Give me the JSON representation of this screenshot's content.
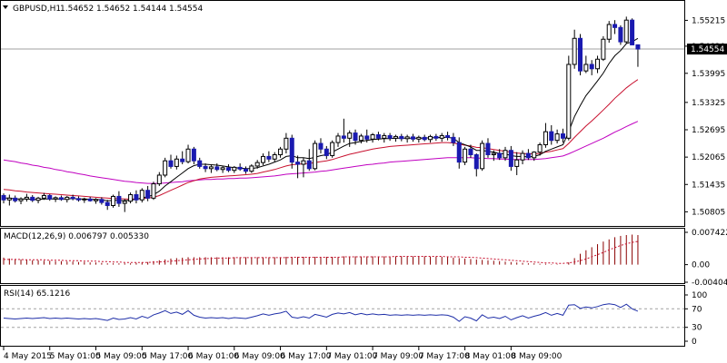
{
  "main_panel": {
    "symbol_header": "GBPUSD,H1",
    "ohlc": [
      "1.54652",
      "1.54652",
      "1.54144",
      "1.54554"
    ],
    "current_price_label": "1.54554",
    "y_ticks": [
      "1.55215",
      "1.54620",
      "1.53995",
      "1.53325",
      "1.52695",
      "1.52065",
      "1.51435",
      "1.50805"
    ]
  },
  "macd_panel": {
    "header": "MACD(12,26,9) 0.006797 0.005330",
    "y_ticks": [
      "0.007422",
      "0.00",
      "-0.004041"
    ]
  },
  "rsi_panel": {
    "header": "RSI(14) 65.1216",
    "y_ticks": [
      "100",
      "70",
      "30",
      "0"
    ]
  },
  "time_axis": [
    "4 May 2015",
    "5 May 01:00",
    "5 May 09:00",
    "5 May 17:00",
    "6 May 01:00",
    "6 May 09:00",
    "6 May 17:00",
    "7 May 01:00",
    "7 May 09:00",
    "7 May 17:00",
    "8 May 01:00",
    "8 May 09:00"
  ],
  "colors": {
    "bull_candle": "#000000",
    "bear_candle": "#1a1ab0",
    "ma_fast": "#000000",
    "ma_mid": "#c8102e",
    "ma_slow": "#c000c0",
    "macd_hist": "#8b0000",
    "macd_signal": "#c8102e",
    "rsi_line": "#1f2fa8",
    "grid": "#808080"
  },
  "chart_data": {
    "type": "candlestick",
    "instrument": "GBPUSD",
    "timeframe": "H1",
    "ylim": [
      1.505,
      1.556
    ],
    "candles": [
      [
        1.5118,
        1.5123,
        1.51,
        1.5108
      ],
      [
        1.5108,
        1.512,
        1.5095,
        1.5112
      ],
      [
        1.5112,
        1.5118,
        1.5102,
        1.5106
      ],
      [
        1.5106,
        1.5114,
        1.5098,
        1.511
      ],
      [
        1.511,
        1.5122,
        1.5104,
        1.5114
      ],
      [
        1.5114,
        1.5119,
        1.5103,
        1.5107
      ],
      [
        1.5107,
        1.5115,
        1.51,
        1.5112
      ],
      [
        1.5112,
        1.5124,
        1.5108,
        1.5118
      ],
      [
        1.5118,
        1.5121,
        1.5106,
        1.511
      ],
      [
        1.511,
        1.5116,
        1.5103,
        1.5113
      ],
      [
        1.5113,
        1.5118,
        1.5106,
        1.5109
      ],
      [
        1.5109,
        1.5117,
        1.5102,
        1.5114
      ],
      [
        1.5114,
        1.512,
        1.5107,
        1.5111
      ],
      [
        1.5111,
        1.5116,
        1.5104,
        1.5108
      ],
      [
        1.5108,
        1.5113,
        1.5101,
        1.511
      ],
      [
        1.511,
        1.5115,
        1.5104,
        1.5106
      ],
      [
        1.5106,
        1.5112,
        1.5099,
        1.5109
      ],
      [
        1.5109,
        1.5114,
        1.5097,
        1.5102
      ],
      [
        1.5102,
        1.5108,
        1.5085,
        1.5095
      ],
      [
        1.5095,
        1.512,
        1.509,
        1.5116
      ],
      [
        1.5116,
        1.5128,
        1.5092,
        1.51
      ],
      [
        1.51,
        1.511,
        1.508,
        1.5105
      ],
      [
        1.5105,
        1.5125,
        1.51,
        1.512
      ],
      [
        1.512,
        1.513,
        1.51,
        1.5108
      ],
      [
        1.5108,
        1.5135,
        1.5102,
        1.513
      ],
      [
        1.513,
        1.514,
        1.5105,
        1.5112
      ],
      [
        1.5112,
        1.515,
        1.5108,
        1.5145
      ],
      [
        1.5145,
        1.5172,
        1.514,
        1.5165
      ],
      [
        1.5165,
        1.5205,
        1.516,
        1.5198
      ],
      [
        1.5198,
        1.5212,
        1.518,
        1.5185
      ],
      [
        1.5185,
        1.521,
        1.5178,
        1.5202
      ],
      [
        1.5202,
        1.522,
        1.519,
        1.5196
      ],
      [
        1.5196,
        1.5235,
        1.5192,
        1.5225
      ],
      [
        1.5225,
        1.523,
        1.519,
        1.5198
      ],
      [
        1.5198,
        1.5205,
        1.518,
        1.5185
      ],
      [
        1.5185,
        1.5192,
        1.5172,
        1.518
      ],
      [
        1.518,
        1.5188,
        1.517,
        1.5184
      ],
      [
        1.5184,
        1.5192,
        1.5174,
        1.5178
      ],
      [
        1.5178,
        1.5186,
        1.517,
        1.5182
      ],
      [
        1.5182,
        1.519,
        1.5172,
        1.5176
      ],
      [
        1.5176,
        1.5186,
        1.517,
        1.5183
      ],
      [
        1.5183,
        1.5192,
        1.5175,
        1.5179
      ],
      [
        1.5179,
        1.5185,
        1.5168,
        1.5174
      ],
      [
        1.5174,
        1.519,
        1.517,
        1.5186
      ],
      [
        1.5186,
        1.52,
        1.518,
        1.5194
      ],
      [
        1.5194,
        1.5215,
        1.5188,
        1.5208
      ],
      [
        1.5208,
        1.522,
        1.5195,
        1.5202
      ],
      [
        1.5202,
        1.5218,
        1.5196,
        1.5212
      ],
      [
        1.5212,
        1.523,
        1.5205,
        1.5225
      ],
      [
        1.5225,
        1.5262,
        1.5215,
        1.525
      ],
      [
        1.525,
        1.5258,
        1.518,
        1.5195
      ],
      [
        1.5195,
        1.521,
        1.5158,
        1.519
      ],
      [
        1.519,
        1.5205,
        1.516,
        1.5198
      ],
      [
        1.5198,
        1.5225,
        1.5175,
        1.518
      ],
      [
        1.518,
        1.5245,
        1.5176,
        1.5238
      ],
      [
        1.5238,
        1.525,
        1.5215,
        1.5225
      ],
      [
        1.5225,
        1.5232,
        1.5202,
        1.521
      ],
      [
        1.521,
        1.5245,
        1.5205,
        1.524
      ],
      [
        1.524,
        1.5262,
        1.523,
        1.5255
      ],
      [
        1.5255,
        1.5295,
        1.524,
        1.525
      ],
      [
        1.525,
        1.5268,
        1.523,
        1.5262
      ],
      [
        1.5262,
        1.527,
        1.5235,
        1.5245
      ],
      [
        1.5245,
        1.526,
        1.5238,
        1.5255
      ],
      [
        1.5255,
        1.527,
        1.524,
        1.5248
      ],
      [
        1.5248,
        1.5262,
        1.524,
        1.5258
      ],
      [
        1.5258,
        1.5265,
        1.5245,
        1.525
      ],
      [
        1.525,
        1.5262,
        1.524,
        1.5256
      ],
      [
        1.5256,
        1.5262,
        1.5244,
        1.525
      ],
      [
        1.525,
        1.5258,
        1.5242,
        1.5254
      ],
      [
        1.5254,
        1.526,
        1.5243,
        1.5249
      ],
      [
        1.5249,
        1.5258,
        1.524,
        1.5253
      ],
      [
        1.5253,
        1.526,
        1.5242,
        1.5248
      ],
      [
        1.5248,
        1.5256,
        1.524,
        1.5252
      ],
      [
        1.5252,
        1.5258,
        1.5243,
        1.5247
      ],
      [
        1.5247,
        1.5258,
        1.524,
        1.5254
      ],
      [
        1.5254,
        1.526,
        1.5244,
        1.525
      ],
      [
        1.525,
        1.5262,
        1.5242,
        1.5256
      ],
      [
        1.5256,
        1.5265,
        1.5245,
        1.5252
      ],
      [
        1.5252,
        1.5262,
        1.5232,
        1.524
      ],
      [
        1.524,
        1.5252,
        1.518,
        1.5195
      ],
      [
        1.5195,
        1.523,
        1.5188,
        1.5225
      ],
      [
        1.5225,
        1.5235,
        1.5205,
        1.5212
      ],
      [
        1.5212,
        1.5215,
        1.5162,
        1.518
      ],
      [
        1.518,
        1.5245,
        1.5175,
        1.5238
      ],
      [
        1.5238,
        1.525,
        1.5205,
        1.5212
      ],
      [
        1.5212,
        1.5222,
        1.5198,
        1.5215
      ],
      [
        1.5215,
        1.5225,
        1.52,
        1.5205
      ],
      [
        1.5205,
        1.523,
        1.5198,
        1.5222
      ],
      [
        1.5222,
        1.5232,
        1.5175,
        1.5185
      ],
      [
        1.5185,
        1.5218,
        1.5165,
        1.52
      ],
      [
        1.52,
        1.5222,
        1.519,
        1.5215
      ],
      [
        1.5215,
        1.5225,
        1.52,
        1.5205
      ],
      [
        1.5205,
        1.522,
        1.5198,
        1.5218
      ],
      [
        1.5218,
        1.524,
        1.521,
        1.5235
      ],
      [
        1.5235,
        1.5285,
        1.5228,
        1.5265
      ],
      [
        1.5265,
        1.528,
        1.5235,
        1.5245
      ],
      [
        1.5245,
        1.527,
        1.5238,
        1.526
      ],
      [
        1.526,
        1.5272,
        1.524,
        1.525
      ],
      [
        1.525,
        1.544,
        1.5245,
        1.542
      ],
      [
        1.542,
        1.55,
        1.541,
        1.548
      ],
      [
        1.548,
        1.549,
        1.5395,
        1.5405
      ],
      [
        1.5405,
        1.544,
        1.54,
        1.542
      ],
      [
        1.542,
        1.543,
        1.5395,
        1.541
      ],
      [
        1.541,
        1.544,
        1.54,
        1.5432
      ],
      [
        1.5432,
        1.5485,
        1.5428,
        1.5478
      ],
      [
        1.5478,
        1.552,
        1.547,
        1.5512
      ],
      [
        1.5512,
        1.5522,
        1.549,
        1.5505
      ],
      [
        1.5505,
        1.551,
        1.5465,
        1.5472
      ],
      [
        1.5472,
        1.553,
        1.5468,
        1.5522
      ],
      [
        1.5522,
        1.5526,
        1.547,
        1.5465
      ],
      [
        1.54652,
        1.54652,
        1.54144,
        1.54554
      ]
    ],
    "ma_fast": [
      1.5112,
      1.5112,
      1.511,
      1.511,
      1.511,
      1.5109,
      1.5109,
      1.511,
      1.511,
      1.511,
      1.511,
      1.511,
      1.5111,
      1.511,
      1.511,
      1.5109,
      1.5109,
      1.5108,
      1.5106,
      1.5107,
      1.5107,
      1.5106,
      1.5108,
      1.5109,
      1.5113,
      1.5115,
      1.512,
      1.5128,
      1.514,
      1.515,
      1.516,
      1.517,
      1.518,
      1.5187,
      1.519,
      1.519,
      1.5189,
      1.5188,
      1.5186,
      1.5184,
      1.5182,
      1.5181,
      1.518,
      1.518,
      1.5182,
      1.5186,
      1.519,
      1.5195,
      1.52,
      1.5208,
      1.521,
      1.5205,
      1.5205,
      1.5203,
      1.5206,
      1.521,
      1.5212,
      1.5218,
      1.5225,
      1.5232,
      1.5238,
      1.524,
      1.5243,
      1.5245,
      1.5247,
      1.5248,
      1.5249,
      1.5249,
      1.525,
      1.525,
      1.525,
      1.525,
      1.525,
      1.525,
      1.5251,
      1.5251,
      1.5252,
      1.5252,
      1.525,
      1.524,
      1.5235,
      1.523,
      1.5222,
      1.5222,
      1.522,
      1.5218,
      1.5215,
      1.5214,
      1.521,
      1.5208,
      1.5208,
      1.5207,
      1.5208,
      1.5212,
      1.522,
      1.5225,
      1.523,
      1.5235,
      1.5265,
      1.53,
      1.5325,
      1.5348,
      1.5365,
      1.5382,
      1.54,
      1.5422,
      1.544,
      1.5452,
      1.5468,
      1.5472,
      1.548
    ],
    "ma_mid": [
      1.5132,
      1.5131,
      1.5129,
      1.5128,
      1.5126,
      1.5125,
      1.5124,
      1.5123,
      1.5122,
      1.5121,
      1.512,
      1.5119,
      1.5118,
      1.5117,
      1.5116,
      1.5115,
      1.5114,
      1.5113,
      1.5112,
      1.5111,
      1.5111,
      1.511,
      1.511,
      1.511,
      1.5111,
      1.5112,
      1.5114,
      1.5118,
      1.5124,
      1.513,
      1.5136,
      1.5142,
      1.5148,
      1.5152,
      1.5156,
      1.5158,
      1.516,
      1.5161,
      1.5162,
      1.5163,
      1.5164,
      1.5165,
      1.5166,
      1.5167,
      1.5169,
      1.5172,
      1.5175,
      1.5178,
      1.5182,
      1.5186,
      1.5189,
      1.519,
      1.5191,
      1.5192,
      1.5194,
      1.5196,
      1.5198,
      1.5201,
      1.5205,
      1.5209,
      1.5213,
      1.5216,
      1.5219,
      1.5222,
      1.5225,
      1.5227,
      1.5229,
      1.5231,
      1.5232,
      1.5233,
      1.5234,
      1.5235,
      1.5236,
      1.5237,
      1.5238,
      1.5239,
      1.524,
      1.524,
      1.5239,
      1.5236,
      1.5234,
      1.5232,
      1.5229,
      1.5228,
      1.5226,
      1.5224,
      1.5222,
      1.522,
      1.5218,
      1.5216,
      1.5215,
      1.5214,
      1.5214,
      1.5215,
      1.5218,
      1.522,
      1.5223,
      1.5226,
      1.5238,
      1.5252,
      1.5265,
      1.5278,
      1.529,
      1.5302,
      1.5315,
      1.5328,
      1.5342,
      1.5354,
      1.5366,
      1.5376,
      1.5385
    ],
    "ma_slow": [
      1.52,
      1.5198,
      1.5196,
      1.5193,
      1.5191,
      1.5188,
      1.5186,
      1.5183,
      1.5181,
      1.5178,
      1.5176,
      1.5173,
      1.5171,
      1.5168,
      1.5166,
      1.5163,
      1.5161,
      1.5159,
      1.5157,
      1.5155,
      1.5153,
      1.5151,
      1.515,
      1.5148,
      1.5147,
      1.5146,
      1.5146,
      1.5146,
      1.5147,
      1.5148,
      1.5149,
      1.515,
      1.5152,
      1.5153,
      1.5154,
      1.5155,
      1.5155,
      1.5156,
      1.5156,
      1.5157,
      1.5157,
      1.5158,
      1.5158,
      1.5159,
      1.516,
      1.5161,
      1.5162,
      1.5163,
      1.5165,
      1.5167,
      1.5168,
      1.5169,
      1.517,
      1.5171,
      1.5172,
      1.5174,
      1.5175,
      1.5177,
      1.5179,
      1.5181,
      1.5183,
      1.5185,
      1.5187,
      1.5189,
      1.519,
      1.5192,
      1.5193,
      1.5195,
      1.5196,
      1.5197,
      1.5198,
      1.5199,
      1.52,
      1.5201,
      1.5202,
      1.5203,
      1.5204,
      1.5205,
      1.5205,
      1.5205,
      1.5205,
      1.5205,
      1.5204,
      1.5204,
      1.5203,
      1.5203,
      1.5202,
      1.5202,
      1.5201,
      1.5201,
      1.5201,
      1.5201,
      1.5201,
      1.5202,
      1.5203,
      1.5205,
      1.5207,
      1.5209,
      1.5214,
      1.522,
      1.5226,
      1.5232,
      1.5238,
      1.5244,
      1.525,
      1.5257,
      1.5264,
      1.527,
      1.5277,
      1.5283,
      1.5289
    ],
    "macd": {
      "ylim": [
        -0.004041,
        0.007422
      ],
      "histogram": [
        0.0016,
        0.0014,
        0.0013,
        0.0012,
        0.0011,
        0.001,
        0.001,
        0.0009,
        0.0009,
        0.0008,
        0.0008,
        0.0007,
        0.0007,
        0.0006,
        0.0006,
        0.0005,
        0.0005,
        0.0004,
        0.0003,
        0.0003,
        0.0003,
        0.0003,
        0.0003,
        0.0004,
        0.0005,
        0.0006,
        0.0008,
        0.001,
        0.0012,
        0.0014,
        0.0015,
        0.0016,
        0.0017,
        0.0017,
        0.0017,
        0.0017,
        0.0017,
        0.0017,
        0.0017,
        0.0017,
        0.0017,
        0.0017,
        0.0017,
        0.0017,
        0.0017,
        0.0017,
        0.0017,
        0.0017,
        0.0017,
        0.0018,
        0.0018,
        0.0018,
        0.0018,
        0.0018,
        0.0018,
        0.0018,
        0.0018,
        0.0018,
        0.0018,
        0.0019,
        0.0019,
        0.0019,
        0.0019,
        0.0019,
        0.0019,
        0.0019,
        0.0019,
        0.0019,
        0.0019,
        0.0019,
        0.0019,
        0.0019,
        0.0019,
        0.0019,
        0.0018,
        0.0018,
        0.0018,
        0.0017,
        0.0016,
        0.0015,
        0.0014,
        0.0013,
        0.0012,
        0.0011,
        0.001,
        0.0009,
        0.0008,
        0.0007,
        0.0006,
        0.0005,
        0.0004,
        0.0003,
        0.0003,
        0.0002,
        0.0002,
        0.0001,
        0.0001,
        0.0,
        0.0005,
        0.0015,
        0.0025,
        0.0033,
        0.004,
        0.0047,
        0.0053,
        0.0058,
        0.0063,
        0.0066,
        0.0068,
        0.0069,
        0.006797
      ],
      "signal": [
        0.0012,
        0.0012,
        0.0012,
        0.0012,
        0.0011,
        0.0011,
        0.0011,
        0.0011,
        0.001,
        0.001,
        0.001,
        0.0009,
        0.0009,
        0.0009,
        0.0008,
        0.0008,
        0.0008,
        0.0007,
        0.0007,
        0.0006,
        0.0006,
        0.0005,
        0.0005,
        0.0005,
        0.0005,
        0.0005,
        0.0006,
        0.0006,
        0.0007,
        0.0008,
        0.0009,
        0.001,
        0.0011,
        0.0012,
        0.0013,
        0.0014,
        0.0014,
        0.0015,
        0.0015,
        0.0015,
        0.0016,
        0.0016,
        0.0016,
        0.0016,
        0.0016,
        0.0016,
        0.0016,
        0.0016,
        0.0016,
        0.0016,
        0.0017,
        0.0017,
        0.0017,
        0.0017,
        0.0017,
        0.0017,
        0.0017,
        0.0017,
        0.0017,
        0.0018,
        0.0018,
        0.0018,
        0.0018,
        0.0018,
        0.0018,
        0.0018,
        0.0018,
        0.0018,
        0.0019,
        0.0019,
        0.0019,
        0.0019,
        0.0019,
        0.0019,
        0.0019,
        0.0019,
        0.0019,
        0.0018,
        0.0018,
        0.0018,
        0.0017,
        0.0017,
        0.0016,
        0.0015,
        0.0014,
        0.0013,
        0.0012,
        0.0011,
        0.001,
        0.0009,
        0.0008,
        0.0007,
        0.0006,
        0.0005,
        0.0004,
        0.0004,
        0.0003,
        0.0003,
        0.0004,
        0.0006,
        0.0009,
        0.0013,
        0.0018,
        0.0023,
        0.0028,
        0.0034,
        0.0039,
        0.0044,
        0.0048,
        0.0051,
        0.00533
      ]
    },
    "rsi": {
      "ylim": [
        0,
        100
      ],
      "levels": [
        70,
        30
      ],
      "values": [
        50,
        49,
        48,
        49,
        50,
        49,
        50,
        51,
        49,
        50,
        49,
        50,
        49,
        48,
        49,
        48,
        49,
        47,
        45,
        50,
        47,
        48,
        51,
        48,
        54,
        50,
        57,
        61,
        66,
        60,
        63,
        58,
        66,
        56,
        52,
        50,
        51,
        50,
        51,
        49,
        51,
        50,
        49,
        52,
        55,
        59,
        56,
        59,
        61,
        65,
        52,
        50,
        53,
        50,
        58,
        55,
        52,
        58,
        61,
        59,
        62,
        57,
        60,
        57,
        59,
        57,
        58,
        56,
        57,
        56,
        57,
        56,
        57,
        56,
        57,
        56,
        57,
        56,
        52,
        43,
        53,
        50,
        44,
        57,
        50,
        52,
        49,
        54,
        46,
        51,
        55,
        50,
        54,
        57,
        62,
        56,
        60,
        56,
        78,
        79,
        71,
        74,
        72,
        75,
        79,
        81,
        79,
        73,
        80,
        70,
        65
      ]
    }
  }
}
